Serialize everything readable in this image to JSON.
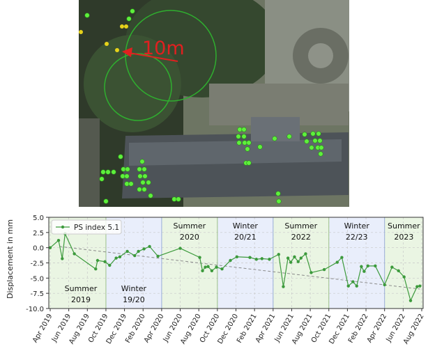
{
  "map": {
    "scale_label": "10m"
  },
  "chart_data": {
    "type": "line",
    "ylabel": "Displacement in mm",
    "xlim": [
      -0.15,
      40.15
    ],
    "ylim": [
      -10,
      5
    ],
    "yticks": [
      {
        "value": 5,
        "label": "5.0"
      },
      -2.5,
      {
        "value": 0,
        "label": "0.0"
      },
      2.5,
      {
        "value": -5,
        "label": "-5.0"
      },
      -7.5,
      {
        "value": -10,
        "label": "-10.0"
      }
    ],
    "xticks": [
      {
        "value": 0,
        "label": "Apr 2019"
      },
      {
        "value": 2,
        "label": "Jun 2019"
      },
      {
        "value": 4,
        "label": "Aug 2019"
      },
      {
        "value": 6,
        "label": "Oct 2019"
      },
      {
        "value": 8,
        "label": "Dec 2019"
      },
      {
        "value": 10,
        "label": "Feb 2020"
      },
      {
        "value": 12,
        "label": "Apr 2020"
      },
      {
        "value": 14,
        "label": "Jun 2020"
      },
      {
        "value": 16,
        "label": "Aug 2020"
      },
      {
        "value": 18,
        "label": "Oct 2020"
      },
      {
        "value": 20,
        "label": "Dec 2020"
      },
      {
        "value": 22,
        "label": "Feb 2021"
      },
      {
        "value": 24,
        "label": "Apr 2021"
      },
      {
        "value": 26,
        "label": "Jun 2021"
      },
      {
        "value": 28,
        "label": "Aug 2021"
      },
      {
        "value": 30,
        "label": "Oct 2021"
      },
      {
        "value": 32,
        "label": "Dec 2021"
      },
      {
        "value": 34,
        "label": "Feb 2022"
      },
      {
        "value": 36,
        "label": "Apr 2022"
      },
      {
        "value": 38,
        "label": "Jun 2022"
      },
      {
        "value": 40,
        "label": "Aug 2022"
      }
    ],
    "grid": true,
    "legend": "upper left",
    "seasons": [
      {
        "label": [
          "Summer",
          "2019"
        ],
        "start": -0.15,
        "end": 6,
        "color": "#eaf5e3"
      },
      {
        "label": [
          "Winter",
          "19/20"
        ],
        "start": 6,
        "end": 12,
        "color": "#e9eefb"
      },
      {
        "label": [
          "Summer",
          "2020"
        ],
        "start": 12,
        "end": 18,
        "color": "#eaf5e3"
      },
      {
        "label": [
          "Winter",
          "20/21"
        ],
        "start": 18,
        "end": 24,
        "color": "#e9eefb"
      },
      {
        "label": [
          "Summer",
          "2022"
        ],
        "start": 24,
        "end": 30,
        "color": "#eaf5e3"
      },
      {
        "label": [
          "Winter",
          "22/23"
        ],
        "start": 30,
        "end": 36,
        "color": "#e9eefb"
      },
      {
        "label": [
          "Summer",
          "2023"
        ],
        "start": 36,
        "end": 40.15,
        "color": "#eaf5e3"
      }
    ],
    "series": [
      {
        "name": "PS index 5.1",
        "color": "#3c9a3c",
        "x": [
          0,
          0.9,
          1.3,
          1.6,
          2.6,
          4.9,
          5.1,
          5.9,
          6.4,
          7.1,
          7.5,
          8.3,
          9.1,
          9.5,
          10.1,
          10.7,
          11.6,
          14.0,
          16.1,
          16.4,
          16.7,
          17.0,
          17.4,
          17.9,
          18.5,
          19.4,
          20.1,
          21.5,
          22.2,
          22.8,
          23.6,
          24.6,
          25.1,
          25.6,
          25.9,
          26.3,
          26.7,
          27.0,
          27.5,
          28.1,
          29.5,
          30.9,
          31.4,
          32.1,
          32.6,
          33.0,
          33.5,
          33.8,
          34.2,
          35.0,
          36.0,
          36.8,
          37.5,
          38.1,
          38.8,
          39.5,
          39.8
        ],
        "values": [
          0.0,
          1.2,
          -1.8,
          2.3,
          -1.0,
          -3.5,
          -2.1,
          -2.3,
          -2.9,
          -1.7,
          -1.5,
          -0.6,
          -1.3,
          -0.6,
          -0.2,
          0.2,
          -1.4,
          -0.1,
          -1.6,
          -3.8,
          -3.2,
          -3.1,
          -3.8,
          -3.2,
          -3.5,
          -2.1,
          -1.5,
          -1.6,
          -1.9,
          -1.8,
          -1.9,
          -1.1,
          -6.4,
          -1.7,
          -2.4,
          -1.5,
          -2.3,
          -1.7,
          -1.0,
          -4.1,
          -3.6,
          -2.4,
          -1.6,
          -6.3,
          -5.6,
          -6.3,
          -3.1,
          -3.9,
          -3.0,
          -3.0,
          -6.1,
          -3.2,
          -3.8,
          -4.8,
          -8.7,
          -6.4,
          -6.3
        ]
      }
    ],
    "trendline": {
      "x": [
        1,
        39.8
      ],
      "values": [
        0.2,
        -6.8
      ],
      "color": "#8a8a8a"
    }
  }
}
